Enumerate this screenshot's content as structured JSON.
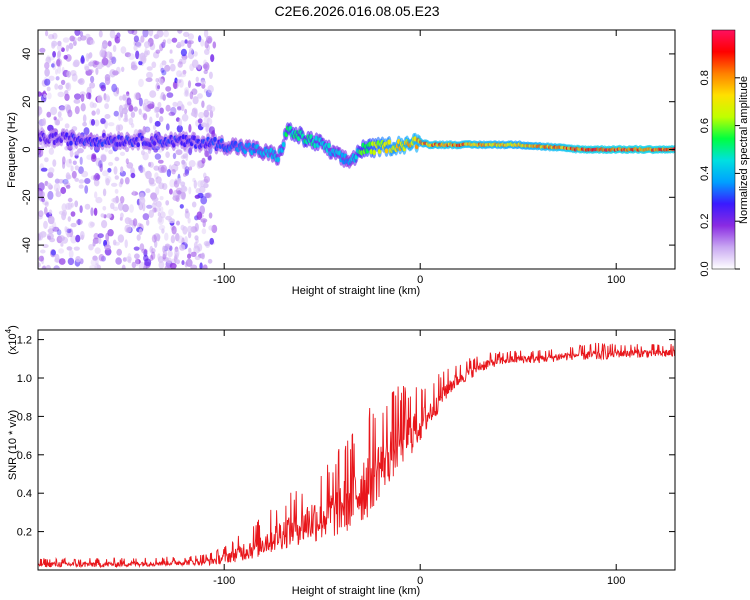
{
  "title": "C2E6.2026.016.08.05.E23",
  "chart_data": [
    {
      "type": "heatmap",
      "xlabel": "Height of straight line (km)",
      "ylabel": "Frequency (Hz)",
      "xlim": [
        -195,
        130
      ],
      "ylim": [
        -50,
        50
      ],
      "xticks": [
        -100,
        0,
        100
      ],
      "yticks": [
        -40,
        -20,
        0,
        20,
        40
      ],
      "colorbar": {
        "label": "Normalized spectral amplitude",
        "range": [
          0,
          1
        ],
        "ticks": [
          0.0,
          0.2,
          0.4,
          0.6,
          0.8
        ],
        "colors": [
          "#ffffff",
          "#c9a8f2",
          "#8a2be2",
          "#3a1aff",
          "#00a0ff",
          "#00e0e0",
          "#00ff40",
          "#c0ff00",
          "#ffe000",
          "#ff8000",
          "#ff0000",
          "#ff1060"
        ]
      },
      "ridge": {
        "x": [
          -195,
          -170,
          -140,
          -110,
          -100,
          -85,
          -72,
          -68,
          -60,
          -50,
          -42,
          -36,
          -30,
          -20,
          -10,
          0,
          5,
          20,
          50,
          83,
          130
        ],
        "freq": [
          5,
          4,
          4,
          3,
          2,
          0,
          -3,
          8,
          5,
          2,
          -3,
          -5,
          0,
          1,
          2,
          3,
          2,
          2,
          2,
          0,
          0
        ],
        "amplitude": [
          0.25,
          0.3,
          0.3,
          0.3,
          0.35,
          0.4,
          0.45,
          0.55,
          0.55,
          0.5,
          0.45,
          0.4,
          0.6,
          0.75,
          0.8,
          0.85,
          0.9,
          0.9,
          0.8,
          0.95,
          0.95
        ]
      }
    },
    {
      "type": "line",
      "xlabel": "Height of straight line (km)",
      "ylabel": "SNR (10 * v/v)",
      "scale_label": "(x10",
      "scale_exponent": "4",
      "xlim": [
        -195,
        130
      ],
      "ylim": [
        0,
        1.25
      ],
      "xticks": [
        -100,
        0,
        100
      ],
      "yticks": [
        0.2,
        0.4,
        0.6,
        0.8,
        1.0,
        1.2
      ],
      "color": "#e8161b",
      "series": {
        "name": "SNR",
        "x": [
          -195,
          -180,
          -160,
          -140,
          -120,
          -105,
          -95,
          -85,
          -75,
          -65,
          -55,
          -45,
          -35,
          -28,
          -20,
          -15,
          -10,
          -5,
          0,
          5,
          10,
          15,
          20,
          25,
          30,
          40,
          50,
          60,
          70,
          80,
          90,
          100,
          110,
          120,
          130
        ],
        "y": [
          0.03,
          0.03,
          0.03,
          0.035,
          0.04,
          0.05,
          0.08,
          0.12,
          0.17,
          0.22,
          0.26,
          0.3,
          0.38,
          0.45,
          0.55,
          0.62,
          0.68,
          0.72,
          0.76,
          0.82,
          0.9,
          0.96,
          1.0,
          1.03,
          1.06,
          1.09,
          1.1,
          1.1,
          1.11,
          1.12,
          1.12,
          1.13,
          1.13,
          1.13,
          1.13
        ],
        "noise": [
          0.02,
          0.02,
          0.02,
          0.02,
          0.02,
          0.03,
          0.05,
          0.08,
          0.1,
          0.12,
          0.15,
          0.18,
          0.22,
          0.25,
          0.2,
          0.2,
          0.18,
          0.16,
          0.12,
          0.1,
          0.08,
          0.06,
          0.05,
          0.05,
          0.04,
          0.03,
          0.03,
          0.03,
          0.03,
          0.03,
          0.04,
          0.03,
          0.03,
          0.03,
          0.03
        ]
      }
    }
  ]
}
